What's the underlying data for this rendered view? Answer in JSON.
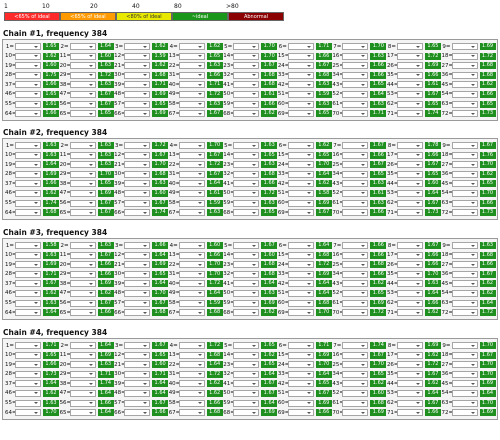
{
  "scale": {
    "ticks": [
      "1",
      "10",
      "20",
      "40",
      "80",
      ">80"
    ]
  },
  "legend": [
    {
      "label": "<65% of ideal",
      "color": "#ff2a2a"
    },
    {
      "label": "<65% of ideal",
      "color": "#ff9a00"
    },
    {
      "label": "<80% of ideal",
      "color": "#e8e800"
    },
    {
      "label": "~ideal",
      "color": "#1a961a"
    },
    {
      "label": "Abnormal",
      "color": "#8b0000"
    }
  ],
  "chains": [
    {
      "title": "Chain #1, frequency 384",
      "values": [
        [
          "1.65",
          "1.64",
          "1.62",
          "1.62",
          "1.70",
          "1.71",
          "1.70",
          "1.65",
          "1.69"
        ],
        [
          "1.62",
          "1.60",
          "1.59",
          "1.65",
          "1.70",
          "1.66",
          "1.63",
          "1.72",
          "1.72"
        ],
        [
          "1.60",
          "1.63",
          "1.62",
          "1.63",
          "1.67",
          "1.67",
          "1.66",
          "1.69",
          "1.68"
        ],
        [
          "1.75",
          "1.72",
          "1.68",
          "1.66",
          "1.68",
          "1.68",
          "1.66",
          "1.66",
          "1.68"
        ],
        [
          "1.66",
          "1.63",
          "1.71",
          "1.71",
          "1.68",
          "1.63",
          "1.65",
          "1.61",
          "1.62"
        ],
        [
          "1.65",
          "1.67",
          "1.69",
          "1.72",
          "1.61",
          "1.59",
          "1.64",
          "1.67",
          "1.66"
        ],
        [
          "1.61",
          "1.67",
          "1.65",
          "1.63",
          "1.66",
          "1.63",
          "1.63",
          "1.65",
          "1.65"
        ],
        [
          "1.66",
          "1.65",
          "1.69",
          "1.67",
          "1.62",
          "1.65",
          "1.71",
          "1.74",
          "1.73"
        ]
      ]
    },
    {
      "title": "Chain #2, frequency 384",
      "values": [
        [
          "1.63",
          "1.63",
          "1.72",
          "1.70",
          "1.63",
          "1.62",
          "1.67",
          "1.78",
          "1.67"
        ],
        [
          "1.63",
          "1.63",
          "1.67",
          "1.67",
          "1.65",
          "1.65",
          "1.66",
          "1.66",
          "1.76"
        ],
        [
          "1.64",
          "1.63",
          "1.70",
          "1.72",
          "1.63",
          "1.70",
          "1.67",
          "1.67",
          "1.70"
        ],
        [
          "1.69",
          "1.70",
          "1.68",
          "1.67",
          "1.68",
          "1.64",
          "1.65",
          "1.65",
          "1.62"
        ],
        [
          "1.66",
          "1.65",
          "1.63",
          "1.64",
          "1.66",
          "1.62",
          "1.63",
          "1.60",
          "1.65"
        ],
        [
          "1.62",
          "1.69",
          "1.60",
          "1.61",
          "1.72",
          "1.58",
          "1.61",
          "1.64",
          "1.70"
        ],
        [
          "1.74",
          "1.67",
          "1.67",
          "1.59",
          "1.63",
          "1.69",
          "1.63",
          "1.67",
          "1.66"
        ],
        [
          "1.68",
          "1.67",
          "1.74",
          "1.63",
          "1.65",
          "1.67",
          "1.66",
          "1.73",
          "1.73"
        ]
      ]
    },
    {
      "title": "Chain #3, frequency 384",
      "values": [
        [
          "1.58",
          "1.63",
          "1.66",
          "1.60",
          "1.67",
          "1.64",
          "1.66",
          "1.67",
          "1.63"
        ],
        [
          "1.63",
          "1.67",
          "1.64",
          "1.66",
          "1.60",
          "1.68",
          "1.66",
          "1.66",
          "1.68"
        ],
        [
          "1.69",
          "1.66",
          "1.69",
          "1.70",
          "1.68",
          "1.72",
          "1.68",
          "1.66",
          "1.66"
        ],
        [
          "1.71",
          "1.66",
          "1.65",
          "1.70",
          "1.68",
          "1.69",
          "1.66",
          "1.70",
          "1.67"
        ],
        [
          "1.67",
          "1.69",
          "1.64",
          "1.72",
          "1.64",
          "1.64",
          "1.62",
          "1.63",
          "1.62"
        ],
        [
          "1.62",
          "1.62",
          "1.70",
          "1.64",
          "1.63",
          "1.64",
          "1.65",
          "1.64",
          "1.62"
        ],
        [
          "1.63",
          "1.67",
          "1.67",
          "1.59",
          "1.69",
          "1.68",
          "1.69",
          "1.66",
          "1.64"
        ],
        [
          "1.64",
          "1.66",
          "1.68",
          "1.68",
          "1.62",
          "1.70",
          "1.72",
          "1.62",
          "1.72"
        ]
      ]
    },
    {
      "title": "Chain #4, frequency 384",
      "values": [
        [
          "1.71",
          "1.64",
          "1.67",
          "1.72",
          "1.65",
          "1.71",
          "1.74",
          "1.69",
          "1.70"
        ],
        [
          "1.65",
          "1.69",
          "1.65",
          "1.68",
          "1.62",
          "1.69",
          "1.67",
          "1.62",
          "1.67"
        ],
        [
          "1.66",
          "1.63",
          "1.60",
          "1.64",
          "1.65",
          "1.70",
          "1.70",
          "1.72",
          "1.70"
        ],
        [
          "1.73",
          "1.71",
          "1.71",
          "1.72",
          "1.64",
          "1.64",
          "1.65",
          "1.67",
          "1.70"
        ],
        [
          "1.64",
          "1.74",
          "1.64",
          "1.62",
          "1.67",
          "1.65",
          "1.62",
          "1.62",
          "1.69"
        ],
        [
          "1.62",
          "1.64",
          "1.64",
          "1.62",
          "1.67",
          "1.67",
          "1.60",
          "1.64",
          "1.64"
        ],
        [
          "1.63",
          "1.66",
          "1.67",
          "1.66",
          "1.64",
          "1.69",
          "1.68",
          "1.67",
          "1.70"
        ],
        [
          "1.70",
          "1.64",
          "1.66",
          "1.68",
          "1.69",
          "1.66",
          "1.69",
          "1.66",
          "1.69"
        ]
      ]
    }
  ]
}
